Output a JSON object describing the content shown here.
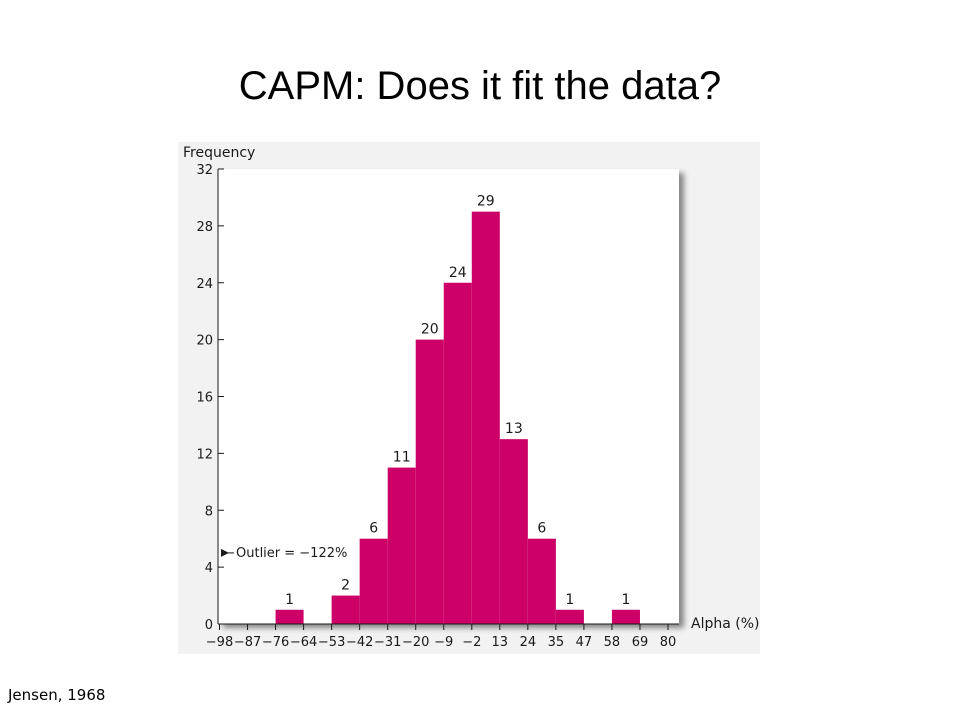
{
  "slide": {
    "title": "CAPM: Does it fit the data?",
    "citation": "Jensen, 1968"
  },
  "chart_data": {
    "type": "bar",
    "ylabel": "Frequency",
    "xlabel": "Alpha (%)",
    "ylim": [
      0,
      32
    ],
    "y_ticks": [
      "0",
      "4",
      "8",
      "12",
      "16",
      "20",
      "24",
      "28",
      "32"
    ],
    "x_ticks": [
      "−98",
      "−87",
      "−76",
      "−64",
      "−53",
      "−42",
      "−31",
      "−20",
      "−9",
      "−2",
      "13",
      "24",
      "35",
      "47",
      "58",
      "69",
      "80"
    ],
    "bins": [
      {
        "from_tick": 2,
        "to_tick": 3,
        "value": 1
      },
      {
        "from_tick": 4,
        "to_tick": 5,
        "value": 2
      },
      {
        "from_tick": 5,
        "to_tick": 6,
        "value": 6
      },
      {
        "from_tick": 6,
        "to_tick": 7,
        "value": 11
      },
      {
        "from_tick": 7,
        "to_tick": 8,
        "value": 20
      },
      {
        "from_tick": 8,
        "to_tick": 9,
        "value": 24
      },
      {
        "from_tick": 9,
        "to_tick": 10,
        "value": 29
      },
      {
        "from_tick": 10,
        "to_tick": 11,
        "value": 13
      },
      {
        "from_tick": 11,
        "to_tick": 12,
        "value": 6
      },
      {
        "from_tick": 12,
        "to_tick": 13,
        "value": 1
      },
      {
        "from_tick": 14,
        "to_tick": 15,
        "value": 1
      }
    ],
    "annotation": {
      "text": "Outlier = −122%",
      "y": 5
    },
    "bar_color": "#cc0066",
    "grid": false
  }
}
